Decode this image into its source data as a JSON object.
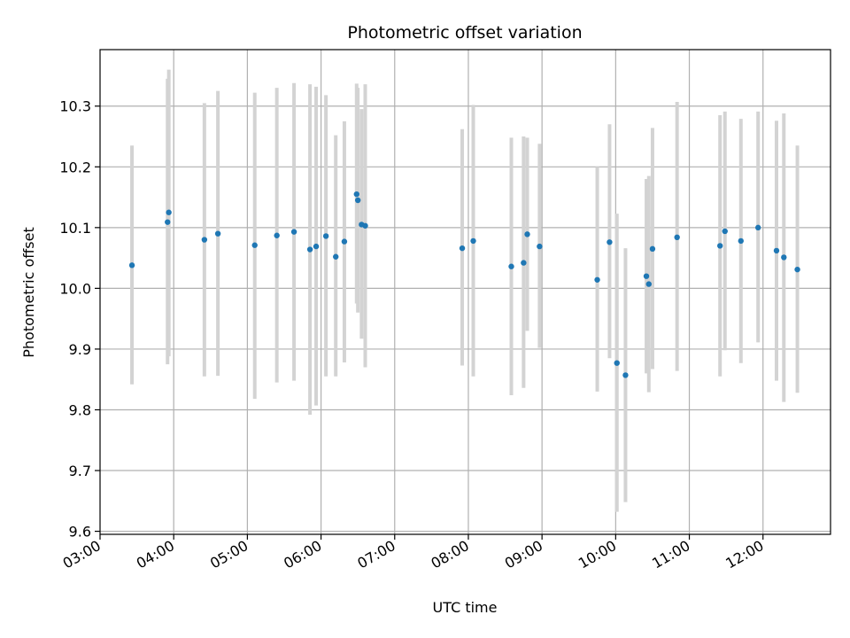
{
  "chart_data": {
    "type": "scatter",
    "title": "Photometric offset variation",
    "xlabel": "UTC time",
    "ylabel": "Photometric offset",
    "x_ticks": [
      "03:00",
      "04:00",
      "05:00",
      "06:00",
      "07:00",
      "08:00",
      "09:00",
      "10:00",
      "11:00",
      "12:00"
    ],
    "y_ticks": [
      "9.6",
      "9.7",
      "9.8",
      "9.9",
      "10.0",
      "10.1",
      "10.2",
      "10.3"
    ],
    "xlim": [
      "03:00",
      "12:55"
    ],
    "ylim": [
      9.595,
      10.393
    ],
    "grid": true,
    "colors": {
      "point": "#1f77b4",
      "errorbar": "#d3d3d3",
      "grid": "#b0b0b0"
    },
    "points": [
      {
        "t": "03:26",
        "y": 10.038,
        "lo": 9.842,
        "hi": 10.235
      },
      {
        "t": "03:55",
        "y": 10.109,
        "lo": 9.875,
        "hi": 10.345
      },
      {
        "t": "03:56",
        "y": 10.125,
        "lo": 9.888,
        "hi": 10.36
      },
      {
        "t": "04:25",
        "y": 10.08,
        "lo": 9.855,
        "hi": 10.305
      },
      {
        "t": "04:36",
        "y": 10.09,
        "lo": 9.856,
        "hi": 10.325
      },
      {
        "t": "05:06",
        "y": 10.071,
        "lo": 9.818,
        "hi": 10.322
      },
      {
        "t": "05:24",
        "y": 10.087,
        "lo": 9.845,
        "hi": 10.33
      },
      {
        "t": "05:38",
        "y": 10.093,
        "lo": 9.848,
        "hi": 10.338
      },
      {
        "t": "05:51",
        "y": 10.064,
        "lo": 9.792,
        "hi": 10.336
      },
      {
        "t": "05:56",
        "y": 10.069,
        "lo": 9.807,
        "hi": 10.332
      },
      {
        "t": "06:04",
        "y": 10.086,
        "lo": 9.855,
        "hi": 10.318
      },
      {
        "t": "06:12",
        "y": 10.052,
        "lo": 9.855,
        "hi": 10.252
      },
      {
        "t": "06:19",
        "y": 10.077,
        "lo": 9.878,
        "hi": 10.275
      },
      {
        "t": "06:29",
        "y": 10.155,
        "lo": 9.975,
        "hi": 10.337
      },
      {
        "t": "06:30",
        "y": 10.145,
        "lo": 9.96,
        "hi": 10.33
      },
      {
        "t": "06:33",
        "y": 10.105,
        "lo": 9.917,
        "hi": 10.295
      },
      {
        "t": "06:36",
        "y": 10.103,
        "lo": 9.87,
        "hi": 10.336
      },
      {
        "t": "07:55",
        "y": 10.066,
        "lo": 9.873,
        "hi": 10.262
      },
      {
        "t": "08:04",
        "y": 10.078,
        "lo": 9.855,
        "hi": 10.302
      },
      {
        "t": "08:35",
        "y": 10.036,
        "lo": 9.824,
        "hi": 10.248
      },
      {
        "t": "08:45",
        "y": 10.042,
        "lo": 9.836,
        "hi": 10.25
      },
      {
        "t": "08:48",
        "y": 10.089,
        "lo": 9.93,
        "hi": 10.248
      },
      {
        "t": "08:58",
        "y": 10.069,
        "lo": 9.902,
        "hi": 10.238
      },
      {
        "t": "09:45",
        "y": 10.014,
        "lo": 9.83,
        "hi": 10.2
      },
      {
        "t": "09:55",
        "y": 10.076,
        "lo": 9.885,
        "hi": 10.27
      },
      {
        "t": "10:01",
        "y": 9.877,
        "lo": 9.632,
        "hi": 10.123
      },
      {
        "t": "10:08",
        "y": 9.857,
        "lo": 9.648,
        "hi": 10.066
      },
      {
        "t": "10:25",
        "y": 10.02,
        "lo": 9.86,
        "hi": 10.18
      },
      {
        "t": "10:27",
        "y": 10.007,
        "lo": 9.829,
        "hi": 10.185
      },
      {
        "t": "10:30",
        "y": 10.065,
        "lo": 9.867,
        "hi": 10.264
      },
      {
        "t": "10:50",
        "y": 10.084,
        "lo": 9.864,
        "hi": 10.307
      },
      {
        "t": "11:25",
        "y": 10.07,
        "lo": 9.855,
        "hi": 10.285
      },
      {
        "t": "11:29",
        "y": 10.094,
        "lo": 9.898,
        "hi": 10.291
      },
      {
        "t": "11:42",
        "y": 10.078,
        "lo": 9.877,
        "hi": 10.279
      },
      {
        "t": "11:56",
        "y": 10.1,
        "lo": 9.911,
        "hi": 10.291
      },
      {
        "t": "12:11",
        "y": 10.062,
        "lo": 9.848,
        "hi": 10.276
      },
      {
        "t": "12:17",
        "y": 10.051,
        "lo": 9.813,
        "hi": 10.288
      },
      {
        "t": "12:28",
        "y": 10.031,
        "lo": 9.828,
        "hi": 10.235
      }
    ]
  }
}
